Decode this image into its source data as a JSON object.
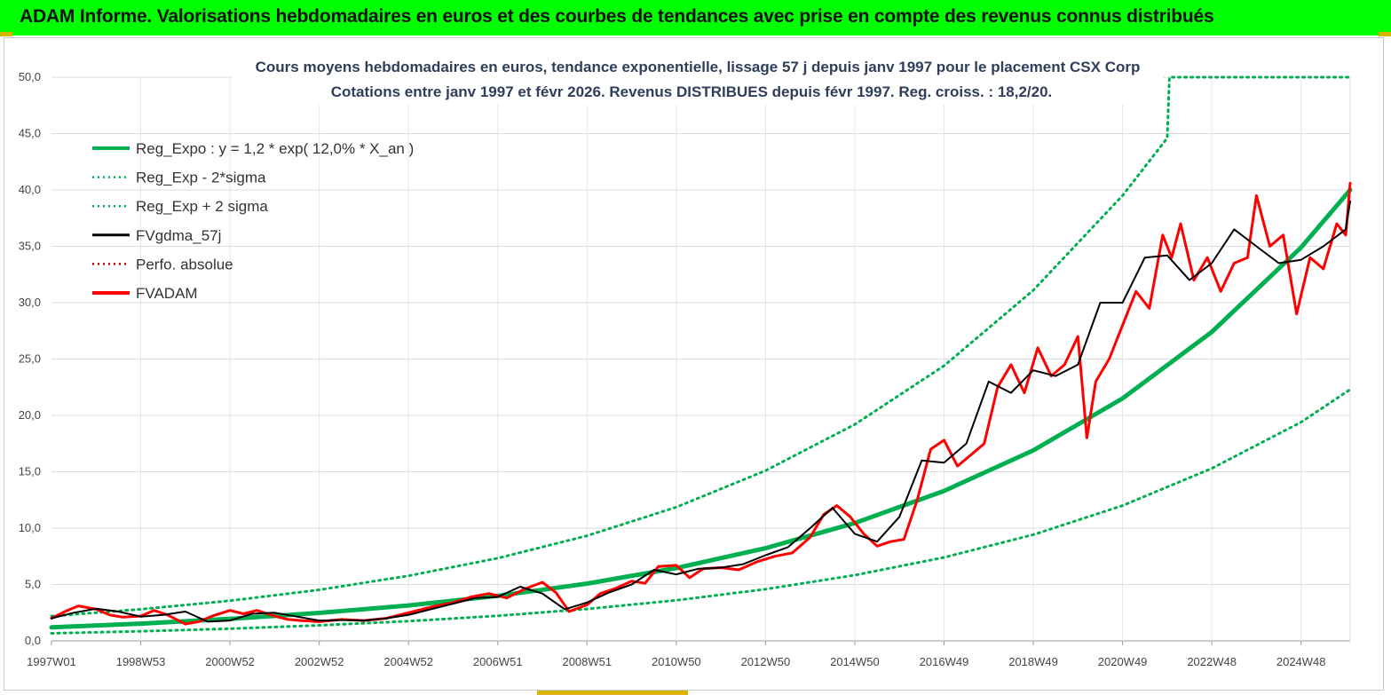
{
  "banner": {
    "title": "ADAM Informe. Valorisations hebdomadaires en euros et des courbes de tendances avec prise en compte des revenus connus distribués"
  },
  "colors": {
    "banner_bg": "#00ff00",
    "trend": "#00b050",
    "sigma": "#00b050",
    "smoothed": "#000000",
    "perfo": "#c00000",
    "fvadam": "#ff0000"
  },
  "chart_data": {
    "type": "line",
    "title": "Cours moyens hebdomadaires en euros, tendance exponentielle, lissage 57 j depuis janv 1997 pour le placement CSX Corp",
    "subtitle": "Cotations entre janv 1997 et févr 2026. Revenus DISTRIBUES depuis févr 1997. Reg. croiss. : 18,2/20.",
    "xlabel": "",
    "ylabel": "",
    "ylim": [
      0,
      50
    ],
    "yticks": [
      "0,0",
      "5,0",
      "10,0",
      "15,0",
      "20,0",
      "25,0",
      "30,0",
      "35,0",
      "40,0",
      "45,0",
      "50,0"
    ],
    "xticks": [
      "1997W01",
      "1998W53",
      "2000W52",
      "2002W52",
      "2004W52",
      "2006W51",
      "2008W51",
      "2010W50",
      "2012W50",
      "2014W50",
      "2016W49",
      "2018W49",
      "2020W49",
      "2022W48",
      "2024W48"
    ],
    "grid": true,
    "legend_position": "top-left",
    "series": [
      {
        "name": "Reg_Expo : y = 1,2 * exp( 12,0% *  X_an )",
        "style": "solid-thick",
        "color": "#00b050",
        "x": [
          1997.0,
          1999.0,
          2001.0,
          2003.0,
          2005.0,
          2007.0,
          2009.0,
          2011.0,
          2013.0,
          2015.0,
          2017.0,
          2019.0,
          2021.0,
          2023.0,
          2025.0,
          2026.1
        ],
        "y": [
          1.2,
          1.53,
          1.95,
          2.48,
          3.14,
          3.99,
          5.08,
          6.46,
          8.22,
          10.45,
          13.3,
          16.9,
          21.5,
          27.4,
          34.9,
          40.0
        ]
      },
      {
        "name": "Reg_Exp - 2*sigma",
        "style": "dotted",
        "color": "#00b050",
        "x": [
          1997.0,
          1999.0,
          2001.0,
          2003.0,
          2005.0,
          2007.0,
          2009.0,
          2011.0,
          2013.0,
          2015.0,
          2017.0,
          2019.0,
          2021.0,
          2023.0,
          2025.0,
          2026.1
        ],
        "y": [
          0.67,
          0.85,
          1.08,
          1.38,
          1.75,
          2.22,
          2.83,
          3.6,
          4.58,
          5.83,
          7.4,
          9.42,
          12.0,
          15.3,
          19.4,
          22.3
        ]
      },
      {
        "name": "Reg_Exp + 2 sigma",
        "style": "dotted",
        "color": "#00b050",
        "x": [
          1997.0,
          1999.0,
          2001.0,
          2003.0,
          2005.0,
          2007.0,
          2009.0,
          2011.0,
          2013.0,
          2015.0,
          2017.0,
          2019.0,
          2021.0,
          2022.0,
          2022.05,
          2024.0,
          2026.1
        ],
        "y": [
          2.2,
          2.8,
          3.56,
          4.53,
          5.77,
          7.33,
          9.32,
          11.86,
          15.1,
          19.2,
          24.4,
          31.1,
          39.5,
          44.6,
          50.0,
          50.0,
          50.0
        ]
      },
      {
        "name": "FVgdma_57j",
        "style": "solid-thin",
        "color": "#000000",
        "x": [
          1997.0,
          1997.5,
          1998.0,
          1998.5,
          1999.0,
          1999.5,
          2000.0,
          2000.5,
          2001.0,
          2001.5,
          2002.0,
          2002.5,
          2003.0,
          2003.5,
          2004.0,
          2004.5,
          2005.0,
          2005.5,
          2006.0,
          2006.5,
          2007.0,
          2007.5,
          2008.0,
          2008.5,
          2009.0,
          2009.5,
          2010.0,
          2010.5,
          2011.0,
          2011.5,
          2012.0,
          2012.5,
          2013.0,
          2013.5,
          2014.0,
          2014.5,
          2015.0,
          2015.5,
          2016.0,
          2016.5,
          2017.0,
          2017.5,
          2018.0,
          2018.5,
          2019.0,
          2019.5,
          2020.0,
          2020.5,
          2021.0,
          2021.5,
          2022.0,
          2022.5,
          2023.0,
          2023.5,
          2024.0,
          2024.5,
          2025.0,
          2025.5,
          2026.0,
          2026.1
        ],
        "y": [
          2.0,
          2.5,
          2.85,
          2.6,
          2.15,
          2.3,
          2.6,
          1.7,
          1.8,
          2.4,
          2.5,
          2.15,
          1.8,
          1.85,
          1.8,
          2.0,
          2.3,
          2.8,
          3.3,
          3.8,
          3.9,
          4.8,
          4.2,
          2.8,
          3.4,
          4.3,
          5.0,
          6.3,
          5.9,
          6.4,
          6.5,
          6.8,
          7.6,
          8.3,
          10.0,
          11.8,
          9.5,
          8.8,
          11.0,
          16.0,
          15.8,
          17.5,
          23.0,
          22.0,
          24.0,
          23.5,
          24.5,
          30.0,
          30.0,
          34.0,
          34.2,
          32.0,
          33.5,
          36.5,
          35.0,
          33.5,
          33.8,
          35.0,
          36.5,
          39.0
        ]
      },
      {
        "name": "Perfo. absolue",
        "style": "dotted",
        "color": "#c00000",
        "x": [],
        "y": []
      },
      {
        "name": "FVADAM",
        "style": "solid-thick",
        "color": "#ff0000",
        "x": [
          1997.0,
          1997.3,
          1997.6,
          1998.0,
          1998.3,
          1998.6,
          1999.0,
          1999.3,
          1999.6,
          2000.0,
          2000.3,
          2000.6,
          2001.0,
          2001.3,
          2001.6,
          2002.0,
          2002.3,
          2002.6,
          2003.0,
          2003.5,
          2004.0,
          2004.5,
          2005.0,
          2005.5,
          2006.0,
          2006.4,
          2006.8,
          2007.2,
          2007.6,
          2008.0,
          2008.3,
          2008.6,
          2009.0,
          2009.3,
          2009.6,
          2010.0,
          2010.3,
          2010.6,
          2011.0,
          2011.3,
          2011.6,
          2012.0,
          2012.4,
          2012.8,
          2013.2,
          2013.6,
          2014.0,
          2014.3,
          2014.6,
          2014.9,
          2015.2,
          2015.5,
          2015.8,
          2016.1,
          2016.4,
          2016.7,
          2017.0,
          2017.3,
          2017.6,
          2017.9,
          2018.2,
          2018.5,
          2018.8,
          2019.1,
          2019.4,
          2019.7,
          2020.0,
          2020.2,
          2020.4,
          2020.7,
          2021.0,
          2021.3,
          2021.6,
          2021.9,
          2022.1,
          2022.3,
          2022.6,
          2022.9,
          2023.2,
          2023.5,
          2023.8,
          2024.0,
          2024.3,
          2024.6,
          2024.9,
          2025.2,
          2025.5,
          2025.8,
          2026.0,
          2026.1
        ],
        "y": [
          2.0,
          2.6,
          3.1,
          2.8,
          2.3,
          2.1,
          2.2,
          2.7,
          2.3,
          1.5,
          1.7,
          2.2,
          2.7,
          2.4,
          2.7,
          2.2,
          1.9,
          1.8,
          1.7,
          1.9,
          1.8,
          2.0,
          2.5,
          3.0,
          3.4,
          3.9,
          4.2,
          3.8,
          4.6,
          5.2,
          4.3,
          2.6,
          3.2,
          4.2,
          4.6,
          5.3,
          5.1,
          6.6,
          6.7,
          5.6,
          6.4,
          6.5,
          6.3,
          7.0,
          7.5,
          7.8,
          9.2,
          11.2,
          12.0,
          11.0,
          9.5,
          8.4,
          8.8,
          9.0,
          12.5,
          17.0,
          17.8,
          15.5,
          16.5,
          17.5,
          22.5,
          24.5,
          22.0,
          26.0,
          23.5,
          24.5,
          27.0,
          18.0,
          23.0,
          25.0,
          28.0,
          31.0,
          29.5,
          36.0,
          34.0,
          37.0,
          32.0,
          34.0,
          31.0,
          33.5,
          34.0,
          39.5,
          35.0,
          36.0,
          29.0,
          34.0,
          33.0,
          37.0,
          36.0,
          40.6
        ]
      }
    ]
  }
}
